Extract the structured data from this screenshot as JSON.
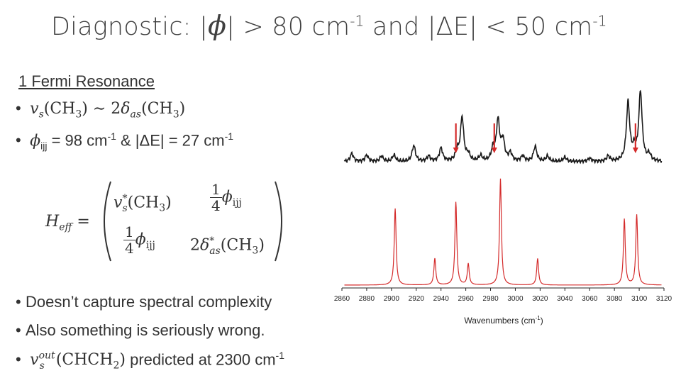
{
  "title": {
    "prefix": "Diagnostic: |",
    "phi": "ϕ",
    "mid": "| > 80 cm",
    "exp1": "-1",
    "and": " and |ΔE| < 50 cm",
    "exp2": "-1"
  },
  "left": {
    "heading": "1 Fermi Resonance",
    "b1": {
      "v": "v",
      "vs": "s",
      "ch3a": "(CH",
      "sub3a": "3",
      "close_a": ")",
      "sim": " ∼ 2",
      "delta": "δ",
      "as": "as",
      "ch3b": "(CH",
      "sub3b": "3",
      "close_b": ")"
    },
    "b2": {
      "phi": "ϕ",
      "ijj": "ijj",
      "eq": " =  98 cm",
      "exp": "-1",
      "and": " & |ΔE| =  27 cm",
      "exp2": "-1"
    },
    "matrix": {
      "H": "H",
      "eff": "eff",
      "eq": " =",
      "c11_v": "v",
      "c11_star": "*",
      "c11_s": "s",
      "c11_rest": "(CH",
      "c11_sub": "3",
      "c11_close": ")",
      "c12_num": "1",
      "c12_den": "4",
      "c12_phi": "ϕ",
      "c12_ijj": "ijj",
      "c21_num": "1",
      "c21_den": "4",
      "c21_phi": "ϕ",
      "c21_ijj": "ijj",
      "c22_pre": "2",
      "c22_delta": "δ",
      "c22_star": "*",
      "c22_as": "as",
      "c22_rest": "(CH",
      "c22_sub": "3",
      "c22_close": ")"
    },
    "b3": "Doesn’t capture spectral complexity",
    "b4": "Also something is seriously wrong.",
    "b5": {
      "v": "v",
      "out": "out",
      "s": "s",
      "chch2": "(CHCH",
      "sub2": "2",
      "close": ")",
      "rest": " predicted at 2300 cm",
      "exp": "-1"
    }
  },
  "chart_data": {
    "type": "line",
    "xlabel": "Wavenumbers (cm",
    "xlabel_exp": "-1",
    "xlabel_close": ")",
    "xlim": [
      2860,
      3120
    ],
    "x_ticks": [
      2860,
      2880,
      2900,
      2920,
      2940,
      2960,
      2980,
      3000,
      3020,
      3040,
      3060,
      3080,
      3100,
      3120
    ],
    "series": [
      {
        "color": "#1a1a1a",
        "peaks": [
          {
            "x": 2868,
            "h": 0.15
          },
          {
            "x": 2880,
            "h": 0.12
          },
          {
            "x": 2892,
            "h": 0.1
          },
          {
            "x": 2902,
            "h": 0.12
          },
          {
            "x": 2918,
            "h": 0.3
          },
          {
            "x": 2930,
            "h": 0.1
          },
          {
            "x": 2940,
            "h": 0.25
          },
          {
            "x": 2953,
            "h": 0.18
          },
          {
            "x": 2957,
            "h": 0.82
          },
          {
            "x": 2962,
            "h": 0.12
          },
          {
            "x": 2972,
            "h": 0.1
          },
          {
            "x": 2982,
            "h": 0.22
          },
          {
            "x": 2986,
            "h": 0.75
          },
          {
            "x": 2990,
            "h": 0.38
          },
          {
            "x": 2996,
            "h": 0.15
          },
          {
            "x": 3006,
            "h": 0.1
          },
          {
            "x": 3016,
            "h": 0.28
          },
          {
            "x": 3026,
            "h": 0.1
          },
          {
            "x": 3040,
            "h": 0.08
          },
          {
            "x": 3060,
            "h": 0.06
          },
          {
            "x": 3075,
            "h": 0.1
          },
          {
            "x": 3091,
            "h": 1.1
          },
          {
            "x": 3096,
            "h": 0.2
          },
          {
            "x": 3101,
            "h": 1.3
          },
          {
            "x": 3108,
            "h": 0.12
          }
        ]
      },
      {
        "color": "#d42a2a",
        "peaks": [
          {
            "x": 2903,
            "h": 0.72
          },
          {
            "x": 2935,
            "h": 0.25
          },
          {
            "x": 2952,
            "h": 0.78
          },
          {
            "x": 2962,
            "h": 0.2
          },
          {
            "x": 2988,
            "h": 1.0
          },
          {
            "x": 3018,
            "h": 0.25
          },
          {
            "x": 3088,
            "h": 0.62
          },
          {
            "x": 3098,
            "h": 0.66
          }
        ]
      }
    ],
    "arrows": [
      2952,
      2983,
      3097
    ]
  }
}
